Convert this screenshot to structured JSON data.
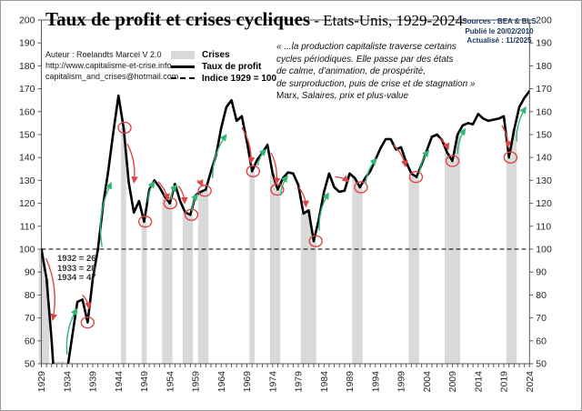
{
  "title": {
    "main": "Taux de profit et crises cycliques",
    "sub": " - Etats-Unis, 1929-2024"
  },
  "author": {
    "line1": "Auteur : Roelandts Marcel V 2.0",
    "line2": "http://www.capitalisme-et-crise.info",
    "line3": "capitalism_and_crises@hotmail.com"
  },
  "legend": {
    "crises": "Crises",
    "profit": "Taux de profit",
    "indice": "Indice 1929 = 100"
  },
  "quote": {
    "lines": [
      "« ...la production capitaliste traverse certains",
      "cycles périodiques. Elle passe par des états",
      "de calme, d’animation, de prospérité,",
      "de surproduction, puis de crise et de stagnation »"
    ],
    "attribution_name": "Marx, ",
    "attribution_work": "Salaires, prix et plus-value"
  },
  "sources": {
    "line1": "Sources : BEA & BLS",
    "line2": "Publié le 20/02/2010",
    "line3": "Actualisé : 11/2025"
  },
  "depression_note": {
    "lines": [
      "1932 = 26",
      "1933 = 28",
      "1934 = 47"
    ]
  },
  "chart_data": {
    "type": "line",
    "title": "Taux de profit et crises cycliques - Etats-Unis, 1929-2024",
    "xlabel": "",
    "ylabel": "",
    "x_start": 1929,
    "x_end": 2024,
    "ylim": [
      50,
      200
    ],
    "y_ticks": [
      50,
      60,
      70,
      80,
      90,
      100,
      110,
      120,
      130,
      140,
      150,
      160,
      170,
      180,
      190,
      200
    ],
    "x_ticks": [
      1929,
      1934,
      1939,
      1944,
      1949,
      1954,
      1959,
      1964,
      1969,
      1974,
      1979,
      1984,
      1989,
      1994,
      1999,
      2004,
      2009,
      2014,
      2019,
      2024
    ],
    "baseline": {
      "value": 100,
      "label": "Indice 1929 = 100"
    },
    "series": [
      {
        "name": "Taux de profit",
        "values": [
          100,
          87,
          60,
          26,
          28,
          47,
          62,
          77,
          78,
          68,
          87,
          100,
          119,
          134,
          151,
          167,
          153,
          129,
          116,
          121,
          112,
          126,
          130,
          127,
          123,
          120,
          128.5,
          121,
          116,
          115,
          123.5,
          125,
          126,
          134,
          141,
          153,
          162,
          165,
          156,
          158,
          147,
          134,
          139,
          142,
          145.5,
          133,
          126,
          131,
          133.5,
          133,
          128,
          115.5,
          117,
          103.5,
          113,
          125,
          133,
          127,
          125,
          125.5,
          133,
          131,
          127,
          131,
          134,
          139,
          144,
          148,
          148,
          143.5,
          144.5,
          138,
          133,
          131.5,
          137,
          143,
          149,
          150,
          147.5,
          142,
          138.5,
          150,
          154,
          155,
          154.5,
          159,
          157,
          156,
          156.5,
          157,
          158,
          140,
          152,
          162,
          166,
          169
        ]
      }
    ],
    "crisis_years": [
      [
        1929,
        1930,
        1932,
        1933
      ],
      [
        1945
      ],
      [
        1949
      ],
      [
        1953,
        1954
      ],
      [
        1957,
        1958
      ],
      [
        1960,
        1961
      ],
      [
        1970
      ],
      [
        1974,
        1975
      ],
      [
        1980,
        1981,
        1982
      ],
      [
        1990,
        1991
      ],
      [
        2001,
        2002
      ],
      [
        2008,
        2009,
        2010
      ],
      [
        2020,
        2021
      ]
    ],
    "trough_circles": [
      {
        "year": 1938,
        "value": 68
      },
      {
        "year": 1945.2,
        "value": 153
      },
      {
        "year": 1949.2,
        "value": 112
      },
      {
        "year": 1954.1,
        "value": 120
      },
      {
        "year": 1958.2,
        "value": 115
      },
      {
        "year": 1960.8,
        "value": 125.5
      },
      {
        "year": 1970.2,
        "value": 134
      },
      {
        "year": 1974.9,
        "value": 126
      },
      {
        "year": 1982.4,
        "value": 103.5
      },
      {
        "year": 1991.2,
        "value": 127
      },
      {
        "year": 2001.9,
        "value": 131.5
      },
      {
        "year": 2009,
        "value": 138.5
      },
      {
        "year": 2020.3,
        "value": 140
      }
    ],
    "arrows": {
      "red": [
        [
          1929.9,
          96,
          1931.2,
          69
        ],
        [
          1937.0,
          80,
          1938.3,
          74
        ],
        [
          1945.7,
          146,
          1947.0,
          129
        ],
        [
          1951.7,
          129.5,
          1953.6,
          121.5
        ],
        [
          1955.7,
          127.5,
          1956.9,
          120
        ],
        [
          1959.3,
          130,
          1960.4,
          127.5
        ],
        [
          1968.0,
          153,
          1969.8,
          137.5
        ],
        [
          1973.7,
          142,
          1974.7,
          128.5
        ],
        [
          1979.1,
          127,
          1980.5,
          118.5
        ],
        [
          1986.2,
          131.5,
          1988.8,
          129.5
        ],
        [
          1997.5,
          145.5,
          1999.9,
          136
        ],
        [
          2006.4,
          148.5,
          2008.2,
          143.5
        ],
        [
          2018.6,
          154,
          2019.8,
          144.5
        ]
      ],
      "green": [
        [
          1934.0,
          54,
          1935.9,
          74
        ],
        [
          1940.8,
          101,
          1942.6,
          129
        ],
        [
          1949.8,
          120.5,
          1951.0,
          129.5
        ],
        [
          1954.2,
          121.5,
          1955.3,
          128
        ],
        [
          1958.3,
          116.5,
          1959.4,
          124
        ],
        [
          1962.3,
          131,
          1965.0,
          150
        ],
        [
          1971.1,
          136.5,
          1972.7,
          143.5
        ],
        [
          1975.6,
          123.5,
          1976.9,
          132
        ],
        [
          1983.1,
          108,
          1984.9,
          124.5
        ],
        [
          1992.1,
          128.5,
          1994.2,
          139.5
        ],
        [
          2002.6,
          133,
          2004.4,
          143
        ],
        [
          2010.0,
          141.5,
          2011.5,
          152.5
        ],
        [
          2021.5,
          147,
          2023.3,
          162
        ]
      ]
    },
    "colors": {
      "line": "#000000",
      "crisis_fill": "#d9d9d9",
      "red": "#e04545",
      "green": "#2eb873",
      "axis": "#595959",
      "sources_text": "#1f3864"
    },
    "grid": false,
    "legend_position": "top-left-inside"
  }
}
